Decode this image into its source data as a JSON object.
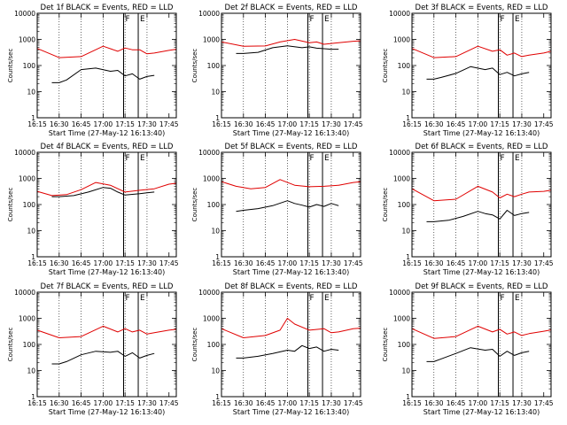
{
  "colors": {
    "events": "#000000",
    "lld": "#e00000",
    "axes": "#000000"
  },
  "chart_data": [
    {
      "type": "line",
      "title": "Det 1f BLACK = Events, RED = LLD",
      "xlabel": "Start Time (27-May-12 16:13:40)",
      "ylabel": "Counts/sec",
      "y_scale": "log",
      "ylim": [
        1,
        10000
      ],
      "xlim": [
        "16:15",
        "17:50"
      ],
      "x_tick_labels": [
        "16:15",
        "16:30",
        "16:45",
        "17:00",
        "17:15",
        "17:30",
        "17:45"
      ],
      "y_tick_labels": [
        "1",
        "10",
        "100",
        "1000",
        "10000"
      ],
      "markers": [
        {
          "label": "F",
          "time": "17:14"
        },
        {
          "label": "E",
          "time": "17:24"
        }
      ],
      "series": [
        {
          "name": "LLD",
          "color": "red",
          "x": [
            "16:15",
            "16:30",
            "16:45",
            "17:00",
            "17:10",
            "17:15",
            "17:20",
            "17:25",
            "17:30",
            "17:35",
            "17:45",
            "17:50"
          ],
          "values": [
            450,
            200,
            220,
            550,
            350,
            470,
            400,
            400,
            280,
            300,
            380,
            420
          ]
        },
        {
          "name": "Events",
          "color": "black",
          "x": [
            "16:25",
            "16:30",
            "16:35",
            "16:45",
            "16:55",
            "17:05",
            "17:10",
            "17:15",
            "17:20",
            "17:25",
            "17:30",
            "17:35"
          ],
          "values": [
            22,
            22,
            28,
            70,
            80,
            60,
            65,
            40,
            48,
            30,
            38,
            42
          ]
        }
      ]
    },
    {
      "type": "line",
      "title": "Det 2f BLACK = Events, RED = LLD",
      "xlabel": "Start Time (27-May-12 16:13:40)",
      "ylabel": "Counts/sec",
      "y_scale": "log",
      "ylim": [
        1,
        10000
      ],
      "xlim": [
        "16:15",
        "17:50"
      ],
      "x_tick_labels": [
        "16:15",
        "16:30",
        "16:45",
        "17:00",
        "17:15",
        "17:30",
        "17:45"
      ],
      "y_tick_labels": [
        "1",
        "10",
        "100",
        "1000",
        "10000"
      ],
      "markers": [
        {
          "label": "F",
          "time": "17:14"
        },
        {
          "label": "E",
          "time": "17:24"
        }
      ],
      "series": [
        {
          "name": "LLD",
          "color": "red",
          "x": [
            "16:15",
            "16:30",
            "16:45",
            "16:55",
            "17:05",
            "17:15",
            "17:20",
            "17:25",
            "17:30",
            "17:35",
            "17:45",
            "17:50"
          ],
          "values": [
            800,
            550,
            560,
            800,
            1000,
            750,
            800,
            650,
            700,
            750,
            850,
            880
          ]
        },
        {
          "name": "Events",
          "color": "black",
          "x": [
            "16:25",
            "16:30",
            "16:40",
            "16:50",
            "17:00",
            "17:10",
            "17:15",
            "17:20",
            "17:25",
            "17:30",
            "17:35"
          ],
          "values": [
            290,
            290,
            320,
            480,
            570,
            480,
            520,
            460,
            440,
            420,
            420
          ]
        }
      ]
    },
    {
      "type": "line",
      "title": "Det 3f BLACK = Events, RED = LLD",
      "xlabel": "Start Time (27-May-12 16:13:40)",
      "ylabel": "Counts/sec",
      "y_scale": "log",
      "ylim": [
        1,
        10000
      ],
      "xlim": [
        "16:15",
        "17:50"
      ],
      "x_tick_labels": [
        "16:15",
        "16:30",
        "16:45",
        "17:00",
        "17:15",
        "17:30",
        "17:45"
      ],
      "y_tick_labels": [
        "1",
        "10",
        "100",
        "1000",
        "10000"
      ],
      "markers": [
        {
          "label": "F",
          "time": "17:14"
        },
        {
          "label": "E",
          "time": "17:24"
        }
      ],
      "series": [
        {
          "name": "LLD",
          "color": "red",
          "x": [
            "16:15",
            "16:30",
            "16:45",
            "17:00",
            "17:10",
            "17:15",
            "17:20",
            "17:25",
            "17:30",
            "17:35",
            "17:45",
            "17:50"
          ],
          "values": [
            450,
            200,
            220,
            550,
            350,
            400,
            250,
            300,
            220,
            250,
            300,
            350
          ]
        },
        {
          "name": "Events",
          "color": "black",
          "x": [
            "16:25",
            "16:30",
            "16:35",
            "16:45",
            "16:55",
            "17:05",
            "17:10",
            "17:15",
            "17:20",
            "17:25",
            "17:30",
            "17:35"
          ],
          "values": [
            30,
            30,
            35,
            50,
            90,
            70,
            80,
            45,
            55,
            40,
            48,
            55
          ]
        }
      ]
    },
    {
      "type": "line",
      "title": "Det 4f BLACK = Events, RED = LLD",
      "xlabel": "Start Time (27-May-12 16:13:40)",
      "ylabel": "Counts/sec",
      "y_scale": "log",
      "ylim": [
        1,
        10000
      ],
      "xlim": [
        "16:15",
        "17:50"
      ],
      "x_tick_labels": [
        "16:15",
        "16:30",
        "16:45",
        "17:00",
        "17:15",
        "17:30",
        "17:45"
      ],
      "y_tick_labels": [
        "1",
        "10",
        "100",
        "1000",
        "10000"
      ],
      "markers": [
        {
          "label": "F",
          "time": "17:14"
        },
        {
          "label": "E",
          "time": "17:24"
        }
      ],
      "series": [
        {
          "name": "LLD",
          "color": "red",
          "x": [
            "16:15",
            "16:25",
            "16:35",
            "16:45",
            "16:55",
            "17:05",
            "17:15",
            "17:25",
            "17:35",
            "17:45",
            "17:50"
          ],
          "values": [
            320,
            220,
            240,
            370,
            700,
            550,
            300,
            350,
            400,
            600,
            650
          ]
        },
        {
          "name": "Events",
          "color": "black",
          "x": [
            "16:25",
            "16:30",
            "16:40",
            "16:50",
            "17:00",
            "17:05",
            "17:10",
            "17:15",
            "17:25",
            "17:30",
            "17:35"
          ],
          "values": [
            200,
            200,
            220,
            300,
            450,
            420,
            300,
            230,
            260,
            280,
            300
          ]
        }
      ]
    },
    {
      "type": "line",
      "title": "Det 5f BLACK = Events, RED = LLD",
      "xlabel": "Start Time (27-May-12 16:13:40)",
      "ylabel": "Counts/sec",
      "y_scale": "log",
      "ylim": [
        1,
        10000
      ],
      "xlim": [
        "16:15",
        "17:50"
      ],
      "x_tick_labels": [
        "16:15",
        "16:30",
        "16:45",
        "17:00",
        "17:15",
        "17:30",
        "17:45"
      ],
      "y_tick_labels": [
        "1",
        "10",
        "100",
        "1000",
        "10000"
      ],
      "markers": [
        {
          "label": "F",
          "time": "17:14"
        },
        {
          "label": "E",
          "time": "17:24"
        }
      ],
      "series": [
        {
          "name": "LLD",
          "color": "red",
          "x": [
            "16:15",
            "16:25",
            "16:35",
            "16:45",
            "16:55",
            "17:05",
            "17:15",
            "17:25",
            "17:35",
            "17:45",
            "17:50"
          ],
          "values": [
            750,
            500,
            400,
            450,
            900,
            550,
            480,
            500,
            550,
            700,
            750
          ]
        },
        {
          "name": "Events",
          "color": "black",
          "x": [
            "16:25",
            "16:30",
            "16:40",
            "16:50",
            "17:00",
            "17:05",
            "17:10",
            "17:15",
            "17:20",
            "17:25",
            "17:30",
            "17:35"
          ],
          "values": [
            55,
            60,
            70,
            90,
            140,
            110,
            95,
            80,
            100,
            85,
            110,
            90
          ]
        }
      ]
    },
    {
      "type": "line",
      "title": "Det 6f BLACK = Events, RED = LLD",
      "xlabel": "Start Time (27-May-12 16:13:40)",
      "ylabel": "Counts/sec",
      "y_scale": "log",
      "ylim": [
        1,
        10000
      ],
      "xlim": [
        "16:15",
        "17:50"
      ],
      "x_tick_labels": [
        "16:15",
        "16:30",
        "16:45",
        "17:00",
        "17:15",
        "17:30",
        "17:45"
      ],
      "y_tick_labels": [
        "1",
        "10",
        "100",
        "1000",
        "10000"
      ],
      "markers": [
        {
          "label": "F",
          "time": "17:14"
        },
        {
          "label": "E",
          "time": "17:24"
        }
      ],
      "series": [
        {
          "name": "LLD",
          "color": "red",
          "x": [
            "16:15",
            "16:30",
            "16:45",
            "17:00",
            "17:10",
            "17:15",
            "17:20",
            "17:25",
            "17:30",
            "17:35",
            "17:45",
            "17:50"
          ],
          "values": [
            400,
            140,
            160,
            500,
            300,
            180,
            250,
            200,
            250,
            300,
            320,
            350
          ]
        },
        {
          "name": "Events",
          "color": "black",
          "x": [
            "16:25",
            "16:30",
            "16:40",
            "16:50",
            "17:00",
            "17:05",
            "17:10",
            "17:15",
            "17:20",
            "17:25",
            "17:30",
            "17:35"
          ],
          "values": [
            22,
            22,
            25,
            35,
            55,
            45,
            40,
            28,
            60,
            38,
            45,
            50
          ]
        }
      ]
    },
    {
      "type": "line",
      "title": "Det 7f BLACK = Events, RED = LLD",
      "xlabel": "Start Time (27-May-12 16:13:40)",
      "ylabel": "Counts/sec",
      "y_scale": "log",
      "ylim": [
        1,
        10000
      ],
      "xlim": [
        "16:15",
        "17:50"
      ],
      "x_tick_labels": [
        "16:15",
        "16:30",
        "16:45",
        "17:00",
        "17:15",
        "17:30",
        "17:45"
      ],
      "y_tick_labels": [
        "1",
        "10",
        "100",
        "1000",
        "10000"
      ],
      "markers": [
        {
          "label": "F",
          "time": "17:14"
        },
        {
          "label": "E",
          "time": "17:24"
        }
      ],
      "series": [
        {
          "name": "LLD",
          "color": "red",
          "x": [
            "16:15",
            "16:30",
            "16:45",
            "17:00",
            "17:10",
            "17:15",
            "17:20",
            "17:25",
            "17:30",
            "17:35",
            "17:45",
            "17:50"
          ],
          "values": [
            350,
            180,
            200,
            500,
            300,
            400,
            300,
            350,
            250,
            280,
            350,
            380
          ]
        },
        {
          "name": "Events",
          "color": "black",
          "x": [
            "16:25",
            "16:30",
            "16:35",
            "16:45",
            "16:55",
            "17:05",
            "17:10",
            "17:15",
            "17:20",
            "17:25",
            "17:30",
            "17:35"
          ],
          "values": [
            18,
            18,
            22,
            40,
            55,
            50,
            55,
            35,
            48,
            30,
            38,
            45
          ]
        }
      ]
    },
    {
      "type": "line",
      "title": "Det 8f BLACK = Events, RED = LLD",
      "xlabel": "Start Time (27-May-12 16:13:40)",
      "ylabel": "Counts/sec",
      "y_scale": "log",
      "ylim": [
        1,
        10000
      ],
      "xlim": [
        "16:15",
        "17:50"
      ],
      "x_tick_labels": [
        "16:15",
        "16:30",
        "16:45",
        "17:00",
        "17:15",
        "17:30",
        "17:45"
      ],
      "y_tick_labels": [
        "1",
        "10",
        "100",
        "1000",
        "10000"
      ],
      "markers": [
        {
          "label": "F",
          "time": "17:14"
        },
        {
          "label": "E",
          "time": "17:24"
        }
      ],
      "series": [
        {
          "name": "LLD",
          "color": "red",
          "x": [
            "16:15",
            "16:30",
            "16:45",
            "16:55",
            "17:00",
            "17:05",
            "17:15",
            "17:25",
            "17:30",
            "17:35",
            "17:45",
            "17:50"
          ],
          "values": [
            400,
            180,
            220,
            350,
            1000,
            600,
            350,
            400,
            280,
            300,
            400,
            420
          ]
        },
        {
          "name": "Events",
          "color": "black",
          "x": [
            "16:25",
            "16:30",
            "16:40",
            "16:50",
            "17:00",
            "17:05",
            "17:10",
            "17:15",
            "17:20",
            "17:25",
            "17:30",
            "17:35"
          ],
          "values": [
            30,
            30,
            35,
            45,
            60,
            55,
            90,
            70,
            80,
            55,
            65,
            60
          ]
        }
      ]
    },
    {
      "type": "line",
      "title": "Det 9f BLACK = Events, RED = LLD",
      "xlabel": "Start Time (27-May-12 16:13:40)",
      "ylabel": "Counts/sec",
      "y_scale": "log",
      "ylim": [
        1,
        10000
      ],
      "xlim": [
        "16:15",
        "17:50"
      ],
      "x_tick_labels": [
        "16:15",
        "16:30",
        "16:45",
        "17:00",
        "17:15",
        "17:30",
        "17:45"
      ],
      "y_tick_labels": [
        "1",
        "10",
        "100",
        "1000",
        "10000"
      ],
      "markers": [
        {
          "label": "F",
          "time": "17:14"
        },
        {
          "label": "E",
          "time": "17:24"
        }
      ],
      "series": [
        {
          "name": "LLD",
          "color": "red",
          "x": [
            "16:15",
            "16:30",
            "16:45",
            "17:00",
            "17:10",
            "17:15",
            "17:20",
            "17:25",
            "17:30",
            "17:35",
            "17:45",
            "17:50"
          ],
          "values": [
            400,
            170,
            200,
            500,
            300,
            380,
            250,
            300,
            220,
            260,
            320,
            360
          ]
        },
        {
          "name": "Events",
          "color": "black",
          "x": [
            "16:25",
            "16:30",
            "16:35",
            "16:45",
            "16:55",
            "17:05",
            "17:10",
            "17:15",
            "17:20",
            "17:25",
            "17:30",
            "17:35"
          ],
          "values": [
            22,
            22,
            28,
            45,
            75,
            60,
            65,
            35,
            55,
            38,
            48,
            55
          ]
        }
      ]
    }
  ]
}
